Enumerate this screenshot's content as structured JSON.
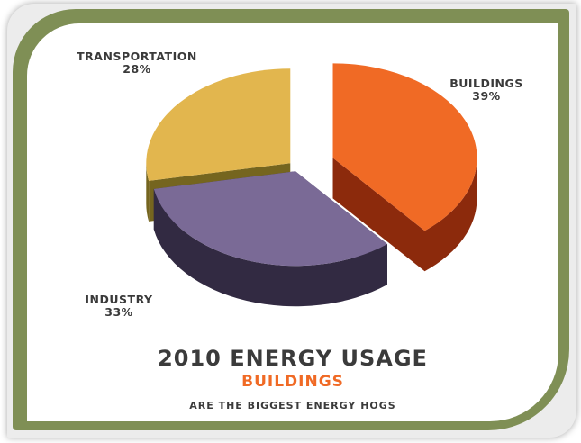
{
  "chart_data": {
    "type": "pie",
    "title": "2010 ENERGY USAGE",
    "subtitle_highlight": "BUILDINGS",
    "subtitle": "ARE THE BIGGEST ENERGY HOGS",
    "slices": [
      {
        "label": "BUILDINGS",
        "value": 39,
        "value_label": "39%",
        "color": "#f06a25",
        "side_color": "#8c2a0c"
      },
      {
        "label": "INDUSTRY",
        "value": 33,
        "value_label": "33%",
        "color": "#7a6a96",
        "side_color": "#322a42"
      },
      {
        "label": "TRANSPORTATION",
        "value": 28,
        "value_label": "28%",
        "color": "#e2b64e",
        "side_color": "#75651f"
      }
    ]
  }
}
